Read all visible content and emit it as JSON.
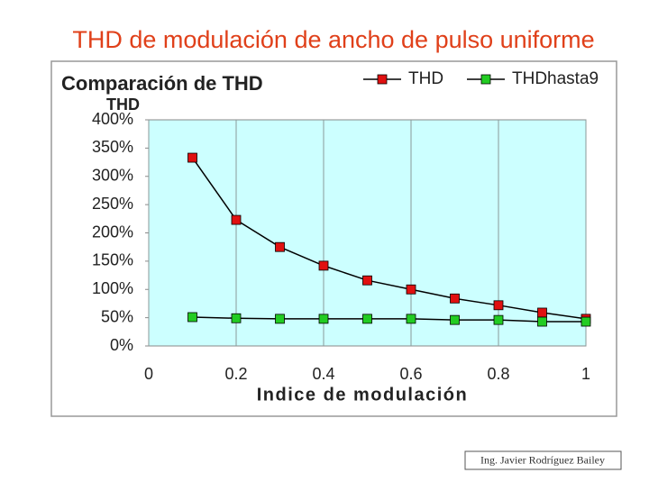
{
  "slide_title": "THD de modulación de ancho de pulso uniforme",
  "chart_data": {
    "type": "line",
    "title": "Comparación de THD",
    "ylabel": "THD",
    "xlabel": "Indice de modulación",
    "x": [
      0.1,
      0.2,
      0.3,
      0.4,
      0.5,
      0.6,
      0.7,
      0.8,
      0.9,
      1
    ],
    "series": [
      {
        "name": "THD",
        "color": "#e01010",
        "values": [
          333,
          223,
          175,
          142,
          116,
          100,
          84,
          72,
          59,
          48
        ]
      },
      {
        "name": "THDhasta9",
        "color": "#22cc22",
        "values": [
          51,
          49,
          48,
          48,
          48,
          48,
          46,
          46,
          43,
          43
        ]
      }
    ],
    "xlim": [
      0,
      1
    ],
    "xticks": [
      0,
      0.2,
      0.4,
      0.6,
      0.8,
      1
    ],
    "ylim": [
      0,
      400
    ],
    "yticks": [
      {
        "value": 0,
        "label": "0%"
      },
      {
        "value": 50,
        "label": "50%"
      },
      {
        "value": 100,
        "label": "100%"
      },
      {
        "value": 150,
        "label": "150%"
      },
      {
        "value": 200,
        "label": "200%"
      },
      {
        "value": 250,
        "label": "250%"
      },
      {
        "value": 300,
        "label": "300%"
      },
      {
        "value": 350,
        "label": "350%"
      },
      {
        "value": 400,
        "label": "400%"
      }
    ],
    "grid": true,
    "legend": "top-right",
    "plot_background": "#ccffff"
  },
  "footer": "Ing. Javier Rodríguez Bailey"
}
